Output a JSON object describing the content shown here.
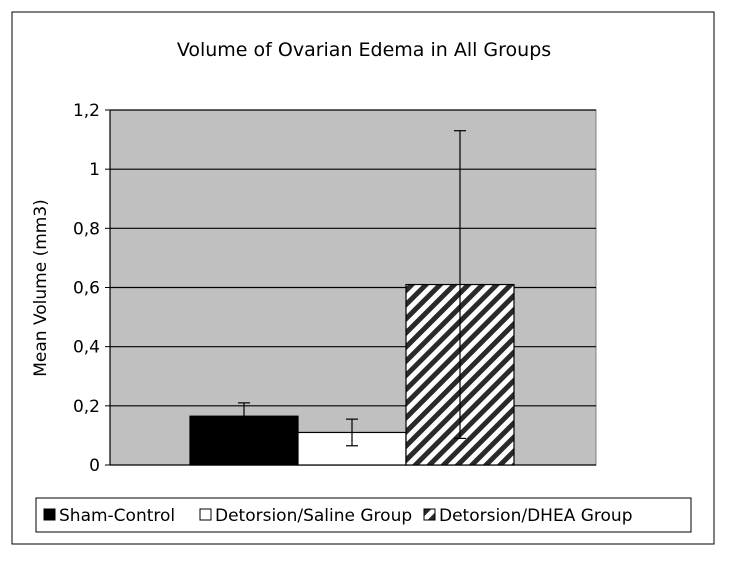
{
  "chart_data": {
    "type": "bar",
    "title": "Volume of Ovarian Edema in All Groups",
    "xlabel": "",
    "ylabel": "Mean Volume (mm3)",
    "ylim": [
      0,
      1.2
    ],
    "yticks": [
      "0",
      "0,2",
      "0,4",
      "0,6",
      "0,8",
      "1",
      "1,2"
    ],
    "grid": true,
    "legend_position": "bottom",
    "series": [
      {
        "name": "Sham-Control",
        "value": 0.165,
        "err_low": 0.045,
        "err_high": 0.045,
        "fill": "#000000",
        "pattern": "solid"
      },
      {
        "name": "Detorsion/Saline Group",
        "value": 0.11,
        "err_low": 0.045,
        "err_high": 0.045,
        "fill": "#ffffff",
        "pattern": "solid"
      },
      {
        "name": "Detorsion/DHEA Group",
        "value": 0.61,
        "err_low": 0.52,
        "err_high": 0.52,
        "fill": "#ffffff",
        "pattern": "diagonal-hatch"
      }
    ],
    "colors": {
      "plot_background": "#c0c0c0",
      "border": "#000000"
    }
  }
}
